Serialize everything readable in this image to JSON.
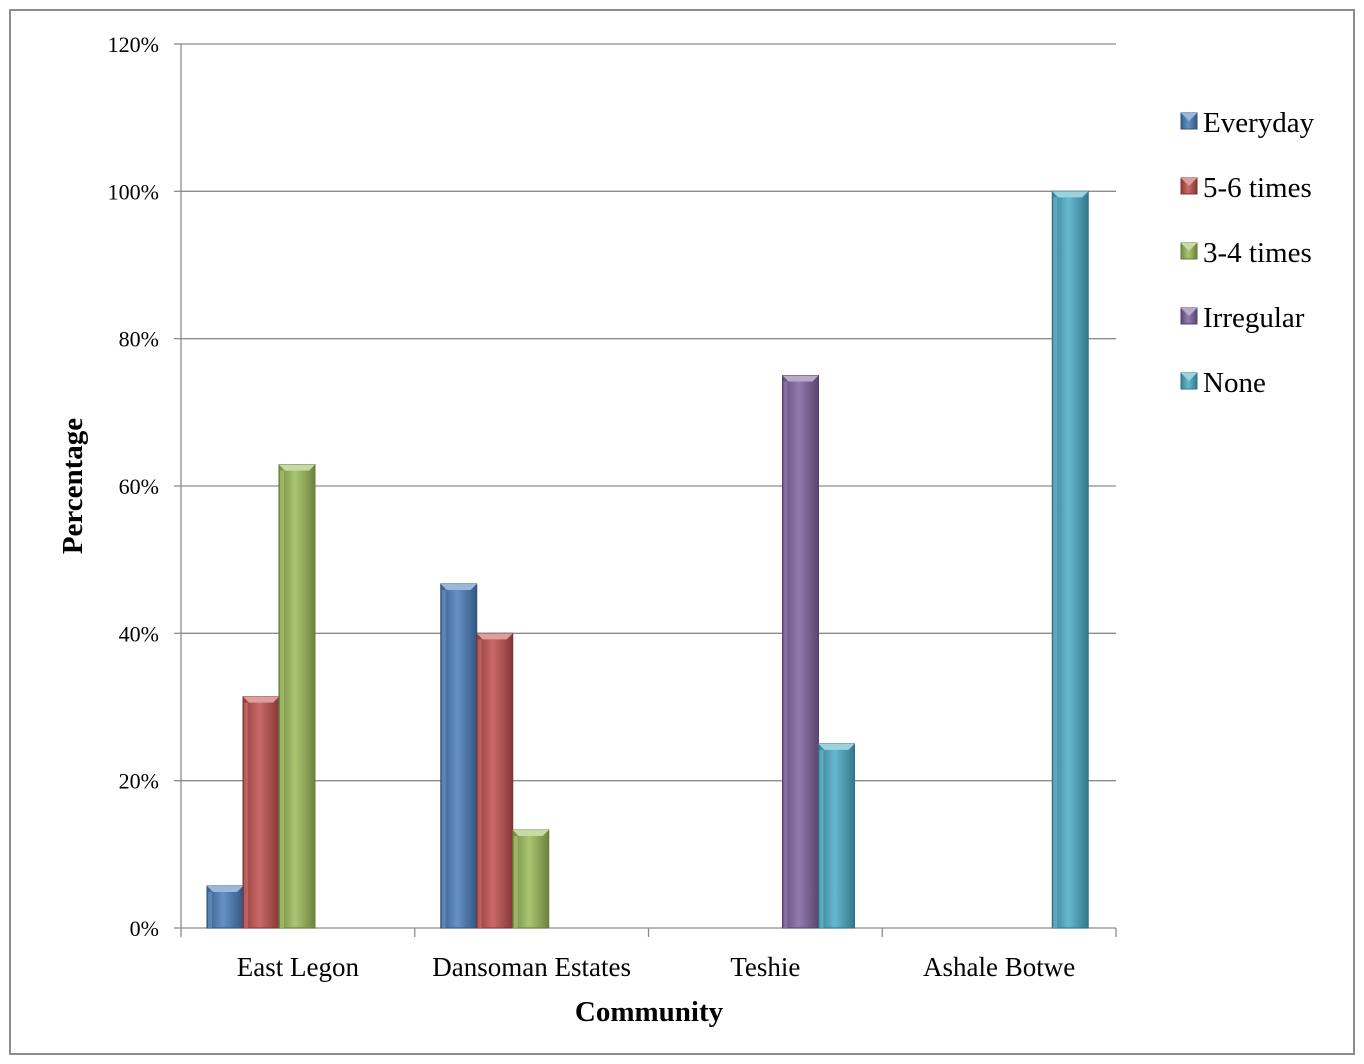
{
  "chart_data": {
    "type": "bar",
    "title": "",
    "xlabel": "Community",
    "ylabel": "Percentage",
    "ylim": [
      0,
      120
    ],
    "yticks": [
      0,
      20,
      40,
      60,
      80,
      100,
      120
    ],
    "ytick_labels": [
      "0%",
      "20%",
      "40%",
      "60%",
      "80%",
      "100%",
      "120%"
    ],
    "grid": true,
    "legend_position": "right",
    "categories": [
      "East Legon",
      "Dansoman Estates",
      "Teshie",
      "Ashale Botwe"
    ],
    "series": [
      {
        "name": "Everyday",
        "color": "#4a7ebb",
        "values": [
          5.7,
          46.7,
          0,
          0
        ]
      },
      {
        "name": "5-6 times",
        "color": "#c0504d",
        "values": [
          31.4,
          40,
          0,
          0
        ]
      },
      {
        "name": "3-4 times",
        "color": "#9bbb59",
        "values": [
          62.9,
          13.3,
          0,
          0
        ]
      },
      {
        "name": "Irregular",
        "color": "#8064a2",
        "values": [
          0,
          0,
          75,
          0
        ]
      },
      {
        "name": "None",
        "color": "#4bacc6",
        "values": [
          0,
          0,
          25,
          100
        ]
      }
    ]
  }
}
